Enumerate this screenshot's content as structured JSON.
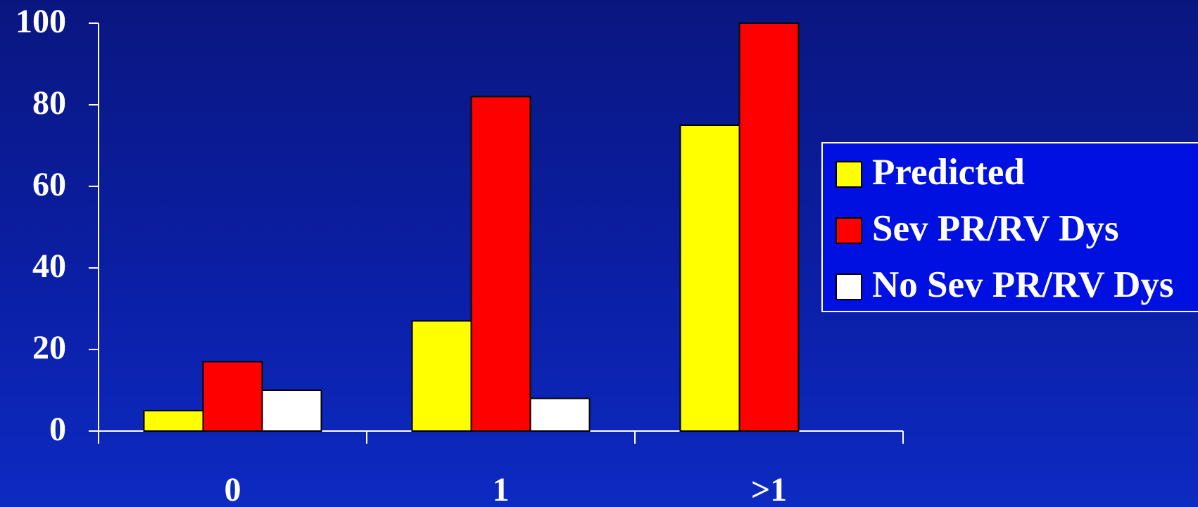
{
  "chart_data": {
    "type": "bar",
    "title": "",
    "xlabel": "",
    "ylabel": "",
    "categories": [
      "0",
      "1",
      ">1"
    ],
    "series": [
      {
        "name": "Predicted",
        "values": [
          5,
          27,
          75
        ],
        "color": "#ffff00"
      },
      {
        "name": "Sev PR/RV Dys",
        "values": [
          17,
          82,
          100
        ],
        "color": "#ff0000"
      },
      {
        "name": "No Sev PR/RV Dys",
        "values": [
          10,
          8,
          null
        ],
        "color": "#ffffff"
      }
    ],
    "ylim": [
      0,
      100
    ],
    "yticks": [
      "0",
      "20",
      "40",
      "60",
      "80",
      "100"
    ],
    "grid": false,
    "legend": {
      "placement": "right",
      "background": "#0010e0"
    },
    "colors": {
      "axis": "#ffffff",
      "bar_edge": "#000000",
      "text": "#ffffff"
    }
  }
}
